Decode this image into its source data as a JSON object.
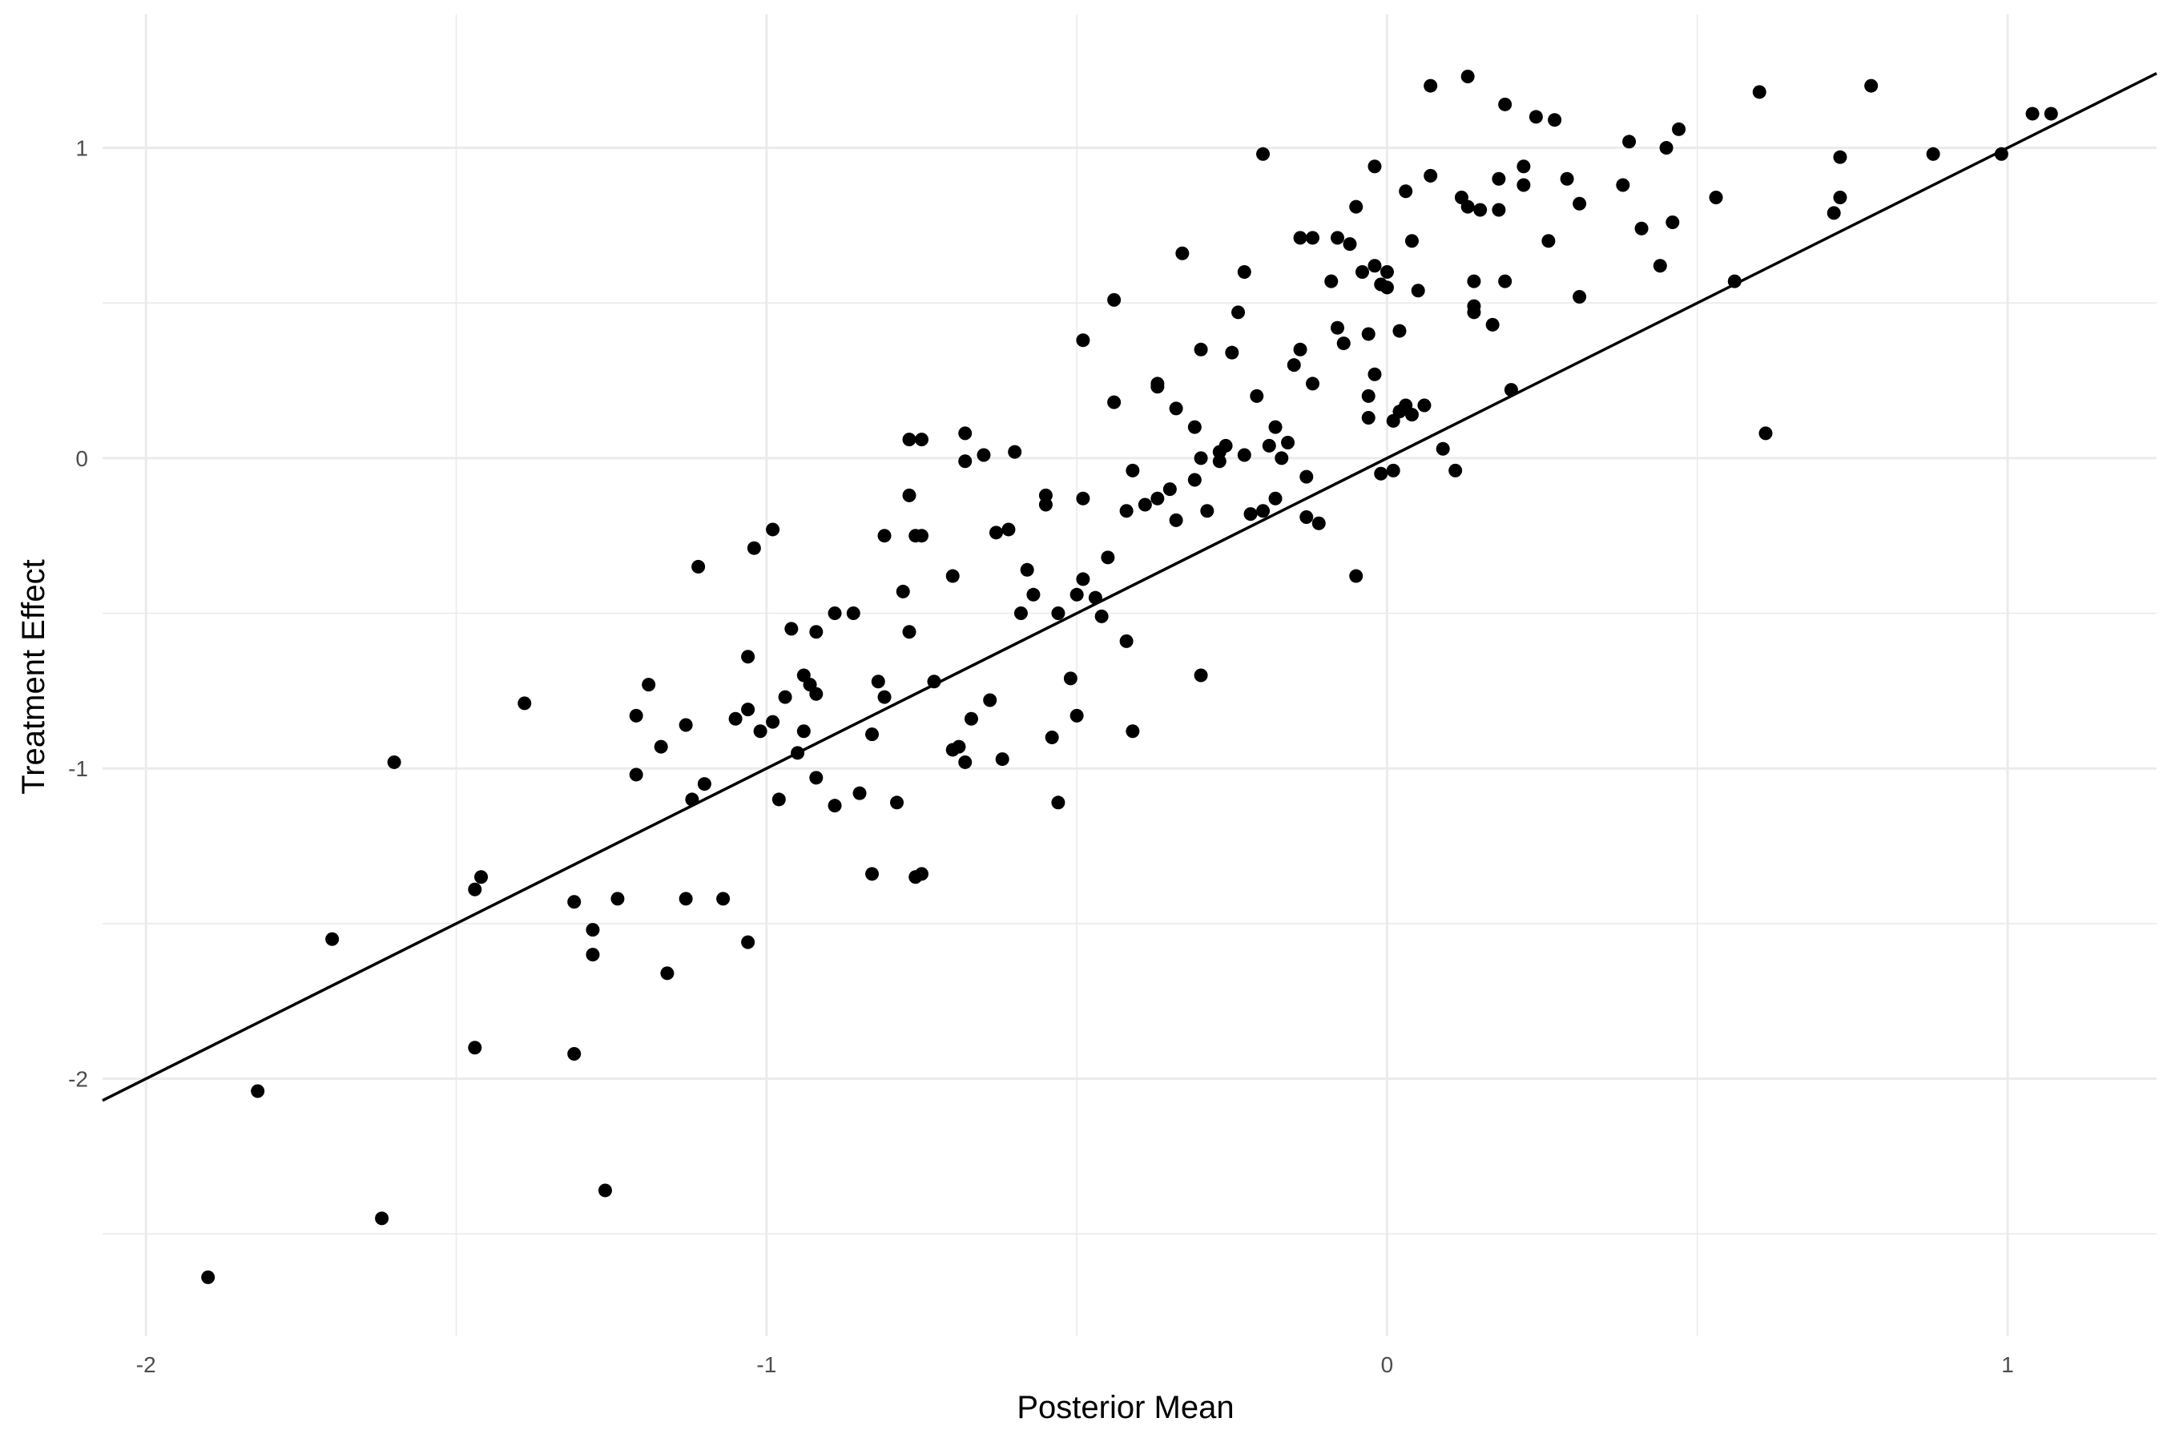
{
  "chart_data": {
    "type": "scatter",
    "xlabel": "Posterior Mean",
    "ylabel": "Treatment Effect",
    "xlim": [
      -2.07,
      1.24
    ],
    "ylim": [
      -2.83,
      1.43
    ],
    "x_ticks": [
      -2,
      -1,
      0,
      1
    ],
    "y_ticks": [
      -2,
      -1,
      0,
      1
    ],
    "x_tick_labels": [
      "-2",
      "-1",
      "0",
      "1"
    ],
    "y_tick_labels": [
      "-2",
      "-1",
      "0",
      "1"
    ],
    "grid": true,
    "legend": "none",
    "reference_line": {
      "intercept": 0,
      "slope": 1
    },
    "point_color": "#000000",
    "line_color": "#000000",
    "grid_color": "#ebebeb",
    "points": [
      [
        -1.9,
        -2.64
      ],
      [
        -1.82,
        -2.04
      ],
      [
        -1.7,
        -1.55
      ],
      [
        -1.62,
        -2.45
      ],
      [
        -1.6,
        -0.98
      ],
      [
        -1.47,
        -1.9
      ],
      [
        -1.47,
        -1.39
      ],
      [
        -1.46,
        -1.35
      ],
      [
        -1.39,
        -0.79
      ],
      [
        -1.31,
        -1.92
      ],
      [
        -1.31,
        -1.43
      ],
      [
        -1.28,
        -1.52
      ],
      [
        -1.28,
        -1.6
      ],
      [
        -1.26,
        -2.36
      ],
      [
        -1.24,
        -1.42
      ],
      [
        -1.21,
        -1.02
      ],
      [
        -1.21,
        -0.83
      ],
      [
        -1.19,
        -0.73
      ],
      [
        -1.17,
        -0.93
      ],
      [
        -1.16,
        -1.66
      ],
      [
        -1.13,
        -1.42
      ],
      [
        -1.13,
        -0.86
      ],
      [
        -1.12,
        -1.1
      ],
      [
        -1.11,
        -0.35
      ],
      [
        -1.1,
        -1.05
      ],
      [
        -1.07,
        -1.42
      ],
      [
        -1.05,
        -0.84
      ],
      [
        -1.03,
        -0.64
      ],
      [
        -1.03,
        -0.81
      ],
      [
        -1.03,
        -1.56
      ],
      [
        -1.02,
        -0.29
      ],
      [
        -1.01,
        -0.88
      ],
      [
        -0.99,
        -0.23
      ],
      [
        -0.99,
        -0.85
      ],
      [
        -0.98,
        -1.1
      ],
      [
        -0.97,
        -0.77
      ],
      [
        -0.96,
        -0.55
      ],
      [
        -0.95,
        -0.95
      ],
      [
        -0.94,
        -0.88
      ],
      [
        -0.94,
        -0.7
      ],
      [
        -0.93,
        -0.73
      ],
      [
        -0.92,
        -0.56
      ],
      [
        -0.92,
        -0.76
      ],
      [
        -0.92,
        -1.03
      ],
      [
        -0.89,
        -0.5
      ],
      [
        -0.89,
        -1.12
      ],
      [
        -0.86,
        -0.5
      ],
      [
        -0.85,
        -1.08
      ],
      [
        -0.83,
        -0.89
      ],
      [
        -0.83,
        -1.34
      ],
      [
        -0.82,
        -0.72
      ],
      [
        -0.81,
        -0.77
      ],
      [
        -0.81,
        -0.25
      ],
      [
        -0.79,
        -1.11
      ],
      [
        -0.78,
        -0.43
      ],
      [
        -0.77,
        -0.12
      ],
      [
        -0.77,
        0.06
      ],
      [
        -0.77,
        -0.56
      ],
      [
        -0.76,
        -0.25
      ],
      [
        -0.76,
        -1.35
      ],
      [
        -0.75,
        -1.34
      ],
      [
        -0.75,
        -0.25
      ],
      [
        -0.75,
        0.06
      ],
      [
        -0.73,
        -0.72
      ],
      [
        -0.7,
        -0.94
      ],
      [
        -0.7,
        -0.38
      ],
      [
        -0.69,
        -0.93
      ],
      [
        -0.68,
        -0.98
      ],
      [
        -0.68,
        0.08
      ],
      [
        -0.68,
        -0.01
      ],
      [
        -0.67,
        -0.84
      ],
      [
        -0.65,
        0.01
      ],
      [
        -0.64,
        -0.78
      ],
      [
        -0.63,
        -0.24
      ],
      [
        -0.62,
        -0.97
      ],
      [
        -0.61,
        -0.23
      ],
      [
        -0.6,
        0.02
      ],
      [
        -0.59,
        -0.5
      ],
      [
        -0.58,
        -0.36
      ],
      [
        -0.57,
        -0.44
      ],
      [
        -0.55,
        -0.15
      ],
      [
        -0.55,
        -0.12
      ],
      [
        -0.54,
        -0.9
      ],
      [
        -0.53,
        -0.5
      ],
      [
        -0.53,
        -1.11
      ],
      [
        -0.51,
        -0.71
      ],
      [
        -0.5,
        -0.44
      ],
      [
        -0.5,
        -0.83
      ],
      [
        -0.49,
        -0.13
      ],
      [
        -0.49,
        0.38
      ],
      [
        -0.49,
        -0.39
      ],
      [
        -0.47,
        -0.45
      ],
      [
        -0.46,
        -0.51
      ],
      [
        -0.45,
        -0.32
      ],
      [
        -0.44,
        0.51
      ],
      [
        -0.44,
        0.18
      ],
      [
        -0.42,
        -0.17
      ],
      [
        -0.42,
        -0.59
      ],
      [
        -0.41,
        -0.88
      ],
      [
        -0.41,
        -0.04
      ],
      [
        -0.39,
        -0.15
      ],
      [
        -0.37,
        0.24
      ],
      [
        -0.37,
        0.23
      ],
      [
        -0.37,
        -0.13
      ],
      [
        -0.35,
        -0.1
      ],
      [
        -0.34,
        0.16
      ],
      [
        -0.34,
        -0.2
      ],
      [
        -0.33,
        0.66
      ],
      [
        -0.31,
        0.1
      ],
      [
        -0.31,
        -0.07
      ],
      [
        -0.3,
        -0.7
      ],
      [
        -0.3,
        0.0
      ],
      [
        -0.3,
        0.35
      ],
      [
        -0.29,
        -0.17
      ],
      [
        -0.27,
        -0.01
      ],
      [
        -0.27,
        0.02
      ],
      [
        -0.26,
        0.04
      ],
      [
        -0.25,
        0.34
      ],
      [
        -0.24,
        0.47
      ],
      [
        -0.23,
        0.6
      ],
      [
        -0.23,
        0.01
      ],
      [
        -0.22,
        -0.18
      ],
      [
        -0.21,
        0.2
      ],
      [
        -0.2,
        0.98
      ],
      [
        -0.2,
        -0.17
      ],
      [
        -0.19,
        0.04
      ],
      [
        -0.18,
        0.1
      ],
      [
        -0.18,
        -0.13
      ],
      [
        -0.17,
        0.0
      ],
      [
        -0.16,
        0.05
      ],
      [
        -0.15,
        0.3
      ],
      [
        -0.14,
        0.71
      ],
      [
        -0.14,
        0.35
      ],
      [
        -0.13,
        -0.06
      ],
      [
        -0.13,
        -0.19
      ],
      [
        -0.12,
        0.24
      ],
      [
        -0.12,
        0.71
      ],
      [
        -0.11,
        -0.21
      ],
      [
        -0.09,
        0.57
      ],
      [
        -0.08,
        0.42
      ],
      [
        -0.08,
        0.71
      ],
      [
        -0.07,
        0.37
      ],
      [
        -0.06,
        0.69
      ],
      [
        -0.05,
        -0.38
      ],
      [
        -0.05,
        0.81
      ],
      [
        -0.04,
        0.6
      ],
      [
        -0.03,
        0.2
      ],
      [
        -0.03,
        0.13
      ],
      [
        -0.03,
        0.4
      ],
      [
        -0.02,
        0.27
      ],
      [
        -0.02,
        0.62
      ],
      [
        -0.02,
        0.94
      ],
      [
        -0.01,
        0.56
      ],
      [
        -0.01,
        -0.05
      ],
      [
        0.0,
        0.55
      ],
      [
        0.0,
        0.6
      ],
      [
        0.01,
        0.12
      ],
      [
        0.01,
        -0.04
      ],
      [
        0.02,
        0.15
      ],
      [
        0.02,
        0.41
      ],
      [
        0.03,
        0.17
      ],
      [
        0.03,
        0.86
      ],
      [
        0.04,
        0.14
      ],
      [
        0.04,
        0.7
      ],
      [
        0.05,
        0.54
      ],
      [
        0.06,
        0.17
      ],
      [
        0.07,
        0.91
      ],
      [
        0.07,
        1.2
      ],
      [
        0.09,
        0.03
      ],
      [
        0.11,
        -0.04
      ],
      [
        0.12,
        0.84
      ],
      [
        0.13,
        1.23
      ],
      [
        0.13,
        0.81
      ],
      [
        0.14,
        0.57
      ],
      [
        0.14,
        0.49
      ],
      [
        0.14,
        0.47
      ],
      [
        0.15,
        0.8
      ],
      [
        0.17,
        0.43
      ],
      [
        0.18,
        0.9
      ],
      [
        0.18,
        0.8
      ],
      [
        0.19,
        0.57
      ],
      [
        0.19,
        1.14
      ],
      [
        0.2,
        0.22
      ],
      [
        0.22,
        0.94
      ],
      [
        0.22,
        0.88
      ],
      [
        0.24,
        1.1
      ],
      [
        0.26,
        0.7
      ],
      [
        0.27,
        1.09
      ],
      [
        0.29,
        0.9
      ],
      [
        0.31,
        0.82
      ],
      [
        0.31,
        0.52
      ],
      [
        0.38,
        0.88
      ],
      [
        0.39,
        1.02
      ],
      [
        0.41,
        0.74
      ],
      [
        0.44,
        0.62
      ],
      [
        0.45,
        1.0
      ],
      [
        0.46,
        0.76
      ],
      [
        0.47,
        1.06
      ],
      [
        0.53,
        0.84
      ],
      [
        0.56,
        0.57
      ],
      [
        0.6,
        1.18
      ],
      [
        0.61,
        0.08
      ],
      [
        0.72,
        0.79
      ],
      [
        0.73,
        0.84
      ],
      [
        0.73,
        0.97
      ],
      [
        0.78,
        1.2
      ],
      [
        0.88,
        0.98
      ],
      [
        0.99,
        0.98
      ],
      [
        1.04,
        1.11
      ],
      [
        1.07,
        1.11
      ]
    ]
  }
}
